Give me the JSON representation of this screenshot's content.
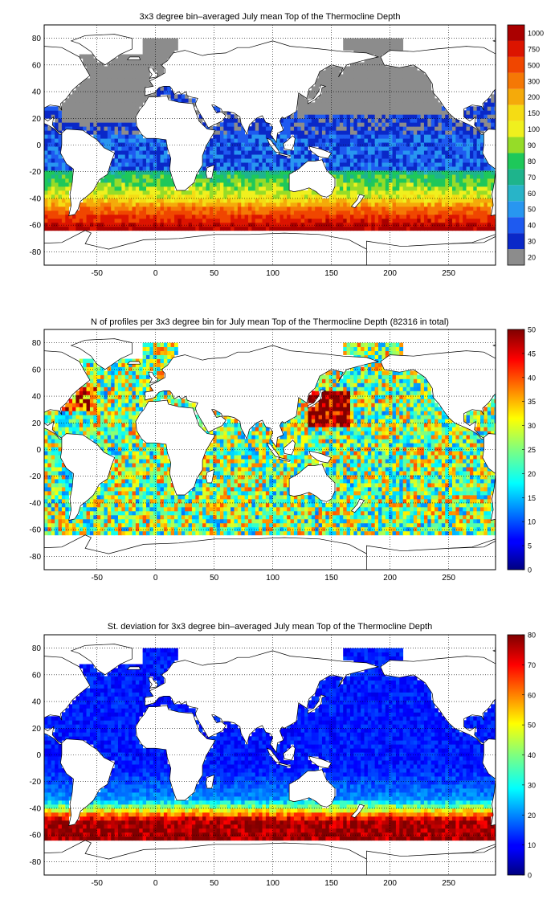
{
  "chart_data": [
    {
      "type": "heatmap",
      "title": "3x3 degree bin–averaged July mean Top of the Thermocline Depth",
      "xlabel": "",
      "ylabel": "",
      "xlim": [
        -95,
        290
      ],
      "ylim": [
        -90,
        90
      ],
      "xticks": [
        -50,
        0,
        50,
        100,
        150,
        200,
        250
      ],
      "yticks": [
        80,
        60,
        40,
        20,
        0,
        -20,
        -40,
        -60,
        -80
      ],
      "grid": true,
      "colorbar": {
        "kind": "categorical",
        "labels": [
          "20",
          "30",
          "40",
          "50",
          "60",
          "70",
          "80",
          "90",
          "100",
          "150",
          "200",
          "300",
          "500",
          "750",
          "1000"
        ],
        "colors": [
          "#8c8c8c",
          "#0a28c8",
          "#1e5af0",
          "#2896f0",
          "#28b4c8",
          "#1eb48c",
          "#1ec85a",
          "#96dc28",
          "#f0f01e",
          "#f5dc14",
          "#f5aa0a",
          "#f57805",
          "#f04600",
          "#dc1400",
          "#aa0000"
        ]
      },
      "fields": {
        "low": "shallow thermocline depths in the tropical and subtropical North Pacific and North Atlantic (grey/blue, 20-40)",
        "mid": "60-100 in subtropical South Atlantic, Indian and South Pacific gyres",
        "high": "150-1000 in the Southern Ocean band between about -40 and -62"
      }
    },
    {
      "type": "heatmap",
      "title": "N of profiles per 3x3 degree bin for July mean Top of the Thermocline Depth  (82316 in total)",
      "xlabel": "",
      "ylabel": "",
      "xlim": [
        -95,
        290
      ],
      "ylim": [
        -90,
        90
      ],
      "xticks": [
        -50,
        0,
        50,
        100,
        150,
        200,
        250
      ],
      "yticks": [
        80,
        60,
        40,
        20,
        0,
        -20,
        -40,
        -60,
        -80
      ],
      "grid": true,
      "colorbar": {
        "kind": "jet",
        "min": 0,
        "max": 50,
        "labels": [
          "0",
          "5",
          "10",
          "15",
          "20",
          "25",
          "30",
          "35",
          "40",
          "45",
          "50"
        ]
      },
      "total_profiles": "82316"
    },
    {
      "type": "heatmap",
      "title": "St. deviation for 3x3 degree bin–averaged July mean Top of the Thermocline Depth",
      "xlabel": "",
      "ylabel": "",
      "xlim": [
        -95,
        290
      ],
      "ylim": [
        -90,
        90
      ],
      "xticks": [
        -50,
        0,
        50,
        100,
        150,
        200,
        250
      ],
      "yticks": [
        80,
        60,
        40,
        20,
        0,
        -20,
        -40,
        -60,
        -80
      ],
      "grid": true,
      "colorbar": {
        "kind": "jet",
        "min": 0,
        "max": 80,
        "labels": [
          "0",
          "10",
          "20",
          "30",
          "40",
          "50",
          "60",
          "70",
          "80"
        ]
      }
    }
  ]
}
